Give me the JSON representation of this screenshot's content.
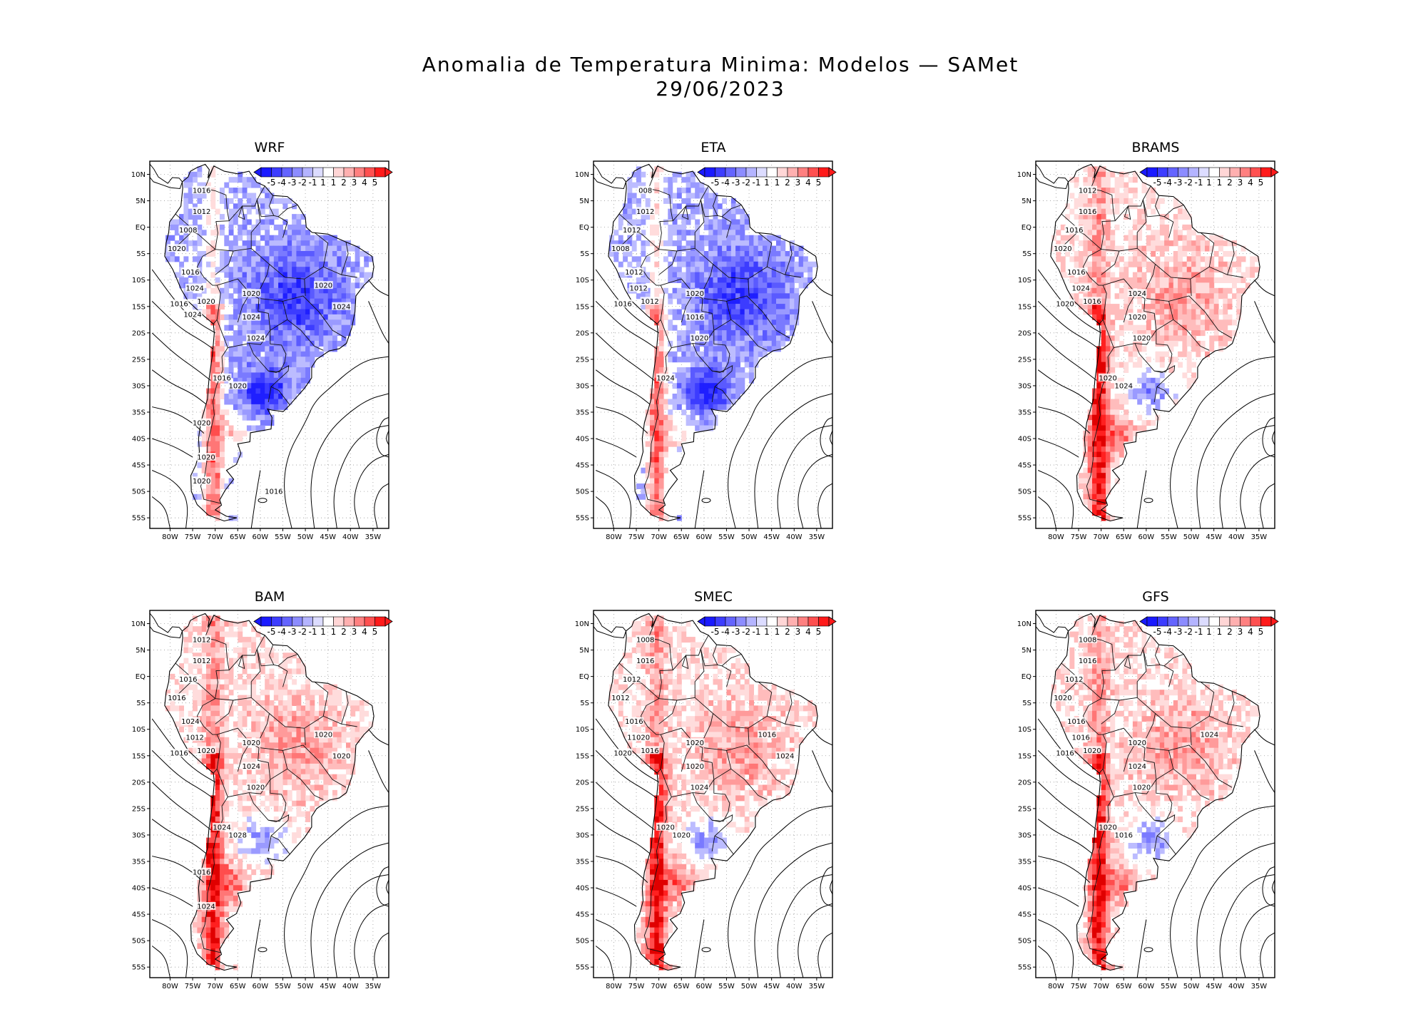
{
  "figure": {
    "title_line1": "Anomalia de Temperatura Minima: Modelos — SAMet",
    "title_line2": "29/06/2023"
  },
  "colorbar": {
    "labels": [
      "-5",
      "-4",
      "-3",
      "-2",
      "-1",
      "1",
      "1",
      "2",
      "3",
      "4",
      "5"
    ],
    "colors": [
      "#1a1aff",
      "#3d3dff",
      "#6464ff",
      "#8c8cff",
      "#b4b4ff",
      "#dcdcff",
      "#ffffff",
      "#ffd6d6",
      "#ffb0b0",
      "#ff8080",
      "#ff5050",
      "#ff1a1a"
    ]
  },
  "axes": {
    "lat_labels": [
      "10N",
      "5N",
      "EQ",
      "5S",
      "10S",
      "15S",
      "20S",
      "25S",
      "30S",
      "35S",
      "40S",
      "45S",
      "50S",
      "55S"
    ],
    "lon_labels": [
      "80W",
      "75W",
      "70W",
      "65W",
      "60W",
      "55W",
      "50W",
      "45W",
      "40W",
      "35W"
    ]
  },
  "panels": [
    {
      "name": "WRF",
      "bias": "cold",
      "isobars": [
        "1016",
        "1012",
        "1008",
        "1020",
        "1016",
        "1024",
        "1016",
        "1020",
        "1020",
        "1024",
        "1024",
        "1016",
        "1020",
        "1020",
        "1024",
        "1020",
        "1020",
        "1020",
        "1016",
        "1024"
      ]
    },
    {
      "name": "ETA",
      "bias": "cold",
      "isobars": [
        "008",
        "1012",
        "1012",
        "1008",
        "1012",
        "1012",
        "1016",
        "1012",
        "1020",
        "1016",
        "1020",
        "1024"
      ]
    },
    {
      "name": "BRAMS",
      "bias": "warm",
      "isobars": [
        "1012",
        "1016",
        "1016",
        "1020",
        "1016",
        "1024",
        "1020",
        "1016",
        "1024",
        "1020",
        "1020",
        "1020",
        "1024"
      ]
    },
    {
      "name": "BAM",
      "bias": "warm",
      "isobars": [
        "1012",
        "1012",
        "1016",
        "1016",
        "1024",
        "1012",
        "1016",
        "1020",
        "1020",
        "1024",
        "1020",
        "1024",
        "1028",
        "1020",
        "1020",
        "1016",
        "1024"
      ]
    },
    {
      "name": "SMEC",
      "bias": "warm",
      "isobars": [
        "1008",
        "1016",
        "1012",
        "1012",
        "1016",
        "11020",
        "1020",
        "1016",
        "1020",
        "1020",
        "1024",
        "1020",
        "1020",
        "1016",
        "1024"
      ]
    },
    {
      "name": "GFS",
      "bias": "warm",
      "isobars": [
        "1008",
        "1016",
        "1012",
        "1020",
        "1016",
        "1016",
        "1016",
        "1020",
        "1020",
        "1024",
        "1020",
        "1020",
        "1016",
        "1024"
      ]
    }
  ]
}
